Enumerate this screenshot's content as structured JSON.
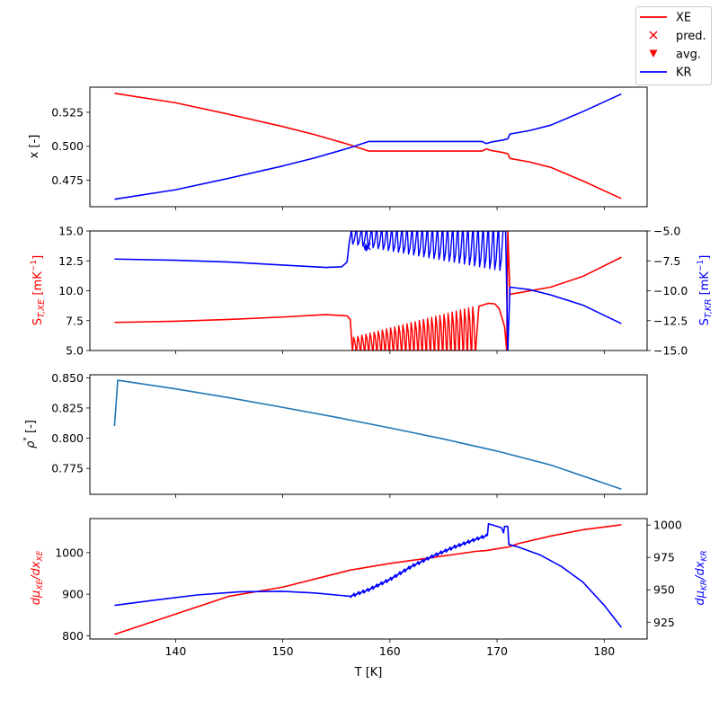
{
  "legend": {
    "placement": "top-right",
    "entries": [
      {
        "label": "XE",
        "marker": "line",
        "color": "#ff0000"
      },
      {
        "label": "pred.",
        "marker": "x",
        "color": "#ff0000"
      },
      {
        "label": "avg.",
        "marker": "triangle-down",
        "color": "#ff0000"
      },
      {
        "label": "KR",
        "marker": "line",
        "color": "#0000ff"
      }
    ]
  },
  "colors": {
    "xe": "#ff0000",
    "kr": "#0000ff",
    "rho": "#1f77b4"
  },
  "chart_data": [
    {
      "type": "line",
      "xlabel": "",
      "ylabel": "x [-]",
      "xlim": [
        132,
        184
      ],
      "ylim": [
        0.4555,
        0.5435
      ],
      "xticks": [
        140,
        150,
        160,
        170,
        180
      ],
      "xtick_labels_shown": false,
      "yticks": [
        {
          "v": 0.475,
          "label": "0.475"
        },
        {
          "v": 0.5,
          "label": "0.500"
        },
        {
          "v": 0.525,
          "label": "0.525"
        }
      ],
      "series": [
        {
          "name": "XE",
          "color": "#ff0000",
          "x": [
            134.3,
            140,
            145,
            150,
            153,
            156.3,
            158,
            160,
            162,
            164,
            166,
            167.5,
            168.6,
            169.0,
            169.5,
            170.5,
            171.0,
            171.2,
            173,
            175,
            178,
            181.6
          ],
          "y": [
            0.539,
            0.532,
            0.5235,
            0.5145,
            0.5085,
            0.501,
            0.4965,
            0.4965,
            0.4965,
            0.4965,
            0.4965,
            0.4965,
            0.4965,
            0.498,
            0.4968,
            0.4955,
            0.4945,
            0.491,
            0.4885,
            0.4845,
            0.4745,
            0.4615
          ]
        },
        {
          "name": "KR",
          "color": "#0000ff",
          "x": [
            134.3,
            140,
            145,
            150,
            153,
            156.3,
            158,
            160,
            162,
            164,
            166,
            167.5,
            168.6,
            169.0,
            169.5,
            170.5,
            171.0,
            171.2,
            173,
            175,
            178,
            181.6
          ],
          "y": [
            0.461,
            0.468,
            0.4765,
            0.4855,
            0.4915,
            0.499,
            0.5035,
            0.5035,
            0.5035,
            0.5035,
            0.5035,
            0.5035,
            0.5035,
            0.502,
            0.5032,
            0.5045,
            0.5055,
            0.509,
            0.5115,
            0.5155,
            0.5255,
            0.5385
          ]
        }
      ]
    },
    {
      "type": "line",
      "xlabel": "",
      "ylabel": "S_{T,XE} [mK^{-1}]",
      "ylabel_right": "S_{T,KR} [mK^{-1}]",
      "xlim": [
        132,
        184
      ],
      "ylim": [
        5,
        15
      ],
      "ylim_right": [
        -15,
        -5
      ],
      "xticks": [
        140,
        150,
        160,
        170,
        180
      ],
      "xtick_labels_shown": false,
      "yticks": [
        {
          "v": 5,
          "label": "5.0"
        },
        {
          "v": 7.5,
          "label": "7.5"
        },
        {
          "v": 10,
          "label": "10.0"
        },
        {
          "v": 12.5,
          "label": "12.5"
        },
        {
          "v": 15,
          "label": "15.0"
        }
      ],
      "yticks_right": [
        {
          "v": -15,
          "label": "−15.0"
        },
        {
          "v": -12.5,
          "label": "−12.5"
        },
        {
          "v": -10,
          "label": "−10.0"
        },
        {
          "v": -7.5,
          "label": "−7.5"
        },
        {
          "v": -5,
          "label": "−5.0"
        }
      ],
      "series": [
        {
          "name": "XE",
          "color": "#ff0000",
          "axis": "left",
          "x": [
            134.3,
            140,
            145,
            150,
            154,
            156.0,
            156.3,
            156.5,
            156.5,
            168.0,
            168.3,
            169.2,
            169.8,
            170.2,
            170.7,
            170.9,
            171.0,
            171.2,
            171.5,
            172.5,
            175,
            178,
            181.6
          ],
          "y": [
            7.35,
            7.45,
            7.6,
            7.8,
            8.0,
            7.9,
            7.6,
            5.0,
            5.0,
            5.0,
            8.7,
            8.95,
            8.9,
            8.5,
            7.0,
            5.0,
            15.0,
            9.7,
            9.75,
            9.9,
            10.3,
            11.2,
            12.8
          ]
        },
        {
          "name": "KR",
          "color": "#0000ff",
          "axis": "right",
          "x": [
            134.3,
            140,
            145,
            150,
            154,
            155.5,
            156.0,
            156.2,
            156.4,
            156.4,
            170.6,
            170.8,
            171.0,
            171.0,
            171.2,
            173,
            175,
            178,
            181.6
          ],
          "y": [
            -7.35,
            -7.45,
            -7.6,
            -7.85,
            -8.05,
            -8.0,
            -7.6,
            -6.0,
            -5.0,
            -5.0,
            -5.0,
            -5.0,
            -15.0,
            -15.0,
            -9.7,
            -9.9,
            -10.35,
            -11.2,
            -12.75
          ]
        }
      ],
      "oscillation_bands": [
        {
          "series": "XE",
          "axis": "left",
          "x_start": 156.5,
          "x_end": 168.0,
          "spikes": 30,
          "base": 5.0,
          "peak_start": 6.1,
          "peak_end": 8.65
        },
        {
          "series": "KR",
          "axis": "right",
          "x_start": 156.4,
          "x_end": 170.6,
          "spikes": 30,
          "base": -5.0,
          "trough_start": -6.1,
          "trough_end": -8.3
        }
      ],
      "markers": [
        {
          "type": "x",
          "series": "pred.",
          "color": "#0000ff",
          "axis": "right",
          "x": 157.9,
          "y": -6.3
        },
        {
          "type": "triangle-down",
          "series": "avg.",
          "color": "#0000ff",
          "axis": "right",
          "x": 157.8,
          "y": -6.45
        }
      ]
    },
    {
      "type": "line",
      "xlabel": "",
      "ylabel": "ρ* [-]",
      "xlim": [
        132,
        184
      ],
      "ylim": [
        0.7535,
        0.8525
      ],
      "xticks": [
        140,
        150,
        160,
        170,
        180
      ],
      "xtick_labels_shown": false,
      "yticks": [
        {
          "v": 0.775,
          "label": "0.775"
        },
        {
          "v": 0.8,
          "label": "0.800"
        },
        {
          "v": 0.825,
          "label": "0.825"
        },
        {
          "v": 0.85,
          "label": "0.850"
        }
      ],
      "series": [
        {
          "name": "",
          "color": "#1f77b4",
          "x": [
            134.3,
            134.6,
            140,
            145,
            150,
            155,
            160,
            165,
            170,
            175,
            181.6
          ],
          "y": [
            0.81,
            0.848,
            0.8408,
            0.8335,
            0.8255,
            0.8173,
            0.8085,
            0.7993,
            0.7893,
            0.7778,
            0.7578
          ]
        }
      ]
    },
    {
      "type": "line",
      "xlabel": "T [K]",
      "ylabel": "dμ_{XE}/dx_{XE}",
      "ylabel_right": "dμ_{KR}/dx_{KR}",
      "xlim": [
        132,
        184
      ],
      "ylim": [
        792,
        1082
      ],
      "ylim_right": [
        912,
        1005
      ],
      "xticks": [
        140,
        150,
        160,
        170,
        180
      ],
      "xtick_labels_shown": true,
      "xtick_labels": [
        "140",
        "150",
        "160",
        "170",
        "180"
      ],
      "yticks": [
        {
          "v": 800,
          "label": "800"
        },
        {
          "v": 900,
          "label": "900"
        },
        {
          "v": 1000,
          "label": "1000"
        }
      ],
      "yticks_right": [
        {
          "v": 925,
          "label": "925"
        },
        {
          "v": 950,
          "label": "950"
        },
        {
          "v": 975,
          "label": "975"
        },
        {
          "v": 1000,
          "label": "1000"
        }
      ],
      "series": [
        {
          "name": "XE",
          "color": "#ff0000",
          "axis": "left",
          "x": [
            134.3,
            140,
            145,
            150,
            156.3,
            160,
            165,
            168,
            169,
            170.4,
            171.0,
            172,
            175,
            178,
            181.6
          ],
          "y": [
            803,
            852,
            895,
            917,
            958,
            974,
            992,
            1003,
            1005,
            1011,
            1013,
            1022,
            1040,
            1055,
            1067
          ]
        },
        {
          "name": "KR",
          "color": "#0000ff",
          "axis": "right",
          "x": [
            134.3,
            138,
            142,
            146,
            150,
            153,
            156.3,
            158,
            160,
            162,
            164,
            166,
            168,
            169.1,
            169.2,
            170.4,
            170.6,
            170.7,
            171.0,
            171.1,
            172,
            174,
            176,
            178,
            180,
            181.6
          ],
          "y": [
            938,
            942,
            946,
            948.5,
            948.8,
            947.5,
            945,
            950,
            958,
            968,
            976,
            983,
            989,
            992,
            1001,
            998,
            994,
            999,
            999,
            985,
            983,
            977,
            968,
            956,
            938,
            921
          ]
        }
      ],
      "kr_sawtooth": {
        "x_start": 156.3,
        "x_end": 169.1,
        "teeth": 30,
        "amplitude": 1.3
      }
    }
  ]
}
